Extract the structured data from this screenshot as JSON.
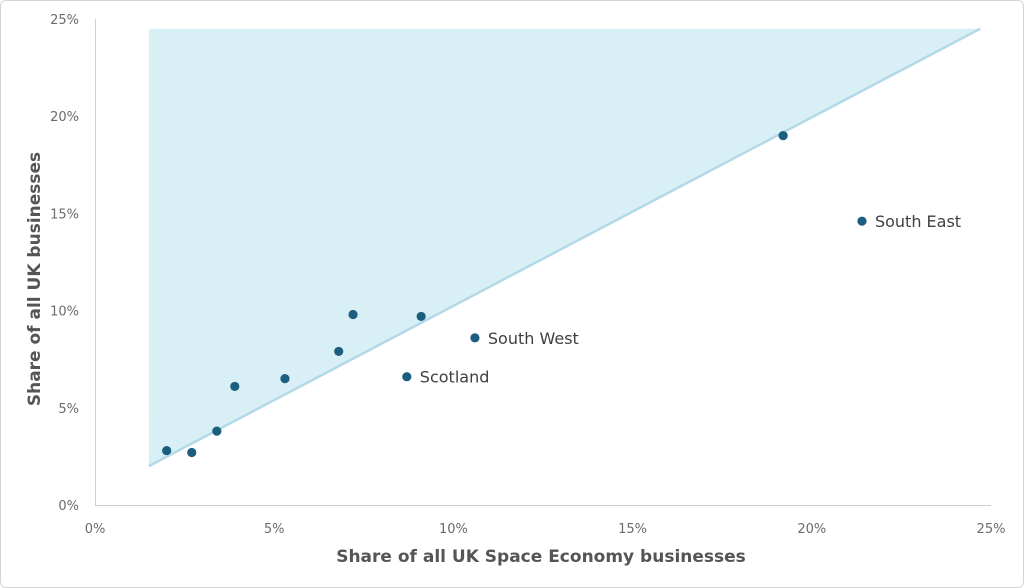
{
  "chart_data": {
    "type": "scatter",
    "xlabel": "Share of all UK Space Economy businesses",
    "ylabel": "Share of all UK businesses",
    "xlim": [
      0,
      25
    ],
    "ylim": [
      0,
      25
    ],
    "x_ticks": [
      "0%",
      "5%",
      "10%",
      "15%",
      "20%",
      "25%"
    ],
    "y_ticks": [
      "0%",
      "5%",
      "10%",
      "15%",
      "20%",
      "25%"
    ],
    "grid": false,
    "legend": "none",
    "reference_line": {
      "from": [
        1.5,
        2.0
      ],
      "to": [
        24.7,
        24.5
      ]
    },
    "shaded_region": "above reference line",
    "colors": {
      "points": "#1b5e7e",
      "line": "#b3d9e8",
      "fill": "#d9eff6",
      "axis": "#cfcfcf"
    },
    "points": [
      {
        "x": 2.0,
        "y": 2.8,
        "label": ""
      },
      {
        "x": 2.7,
        "y": 2.7,
        "label": ""
      },
      {
        "x": 3.4,
        "y": 3.8,
        "label": ""
      },
      {
        "x": 3.9,
        "y": 6.1,
        "label": ""
      },
      {
        "x": 5.3,
        "y": 6.5,
        "label": ""
      },
      {
        "x": 6.8,
        "y": 7.9,
        "label": ""
      },
      {
        "x": 7.2,
        "y": 9.8,
        "label": ""
      },
      {
        "x": 8.7,
        "y": 6.6,
        "label": "Scotland"
      },
      {
        "x": 9.1,
        "y": 9.7,
        "label": ""
      },
      {
        "x": 10.6,
        "y": 8.6,
        "label": "South West"
      },
      {
        "x": 19.2,
        "y": 19.0,
        "label": ""
      },
      {
        "x": 21.4,
        "y": 14.6,
        "label": "South East"
      }
    ]
  }
}
